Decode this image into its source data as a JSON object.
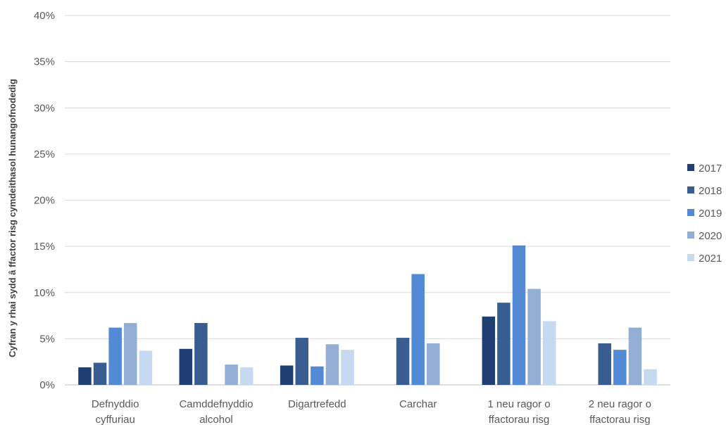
{
  "chart_data": {
    "type": "bar",
    "ylabel": "Cyfran y rhai sydd â ffactor risg cymdeithasol hunangofnodedig",
    "xlabel": "",
    "ylim": [
      0,
      40
    ],
    "ytick_step": 5,
    "ytick_suffix": "%",
    "grid": true,
    "legend_position": "right",
    "categories": [
      [
        "Defnyddio",
        "cyffuriau"
      ],
      [
        "Camddefnyddio",
        "alcohol"
      ],
      [
        "Digartrefedd"
      ],
      [
        "Carchar"
      ],
      [
        "1 neu ragor o",
        "ffactorau risg"
      ],
      [
        "2 neu ragor o",
        "ffactorau risg"
      ]
    ],
    "series": [
      {
        "name": "2017",
        "color": "#1f3f73",
        "values": [
          1.9,
          3.9,
          2.1,
          null,
          7.4,
          null
        ]
      },
      {
        "name": "2018",
        "color": "#3a5d91",
        "values": [
          2.4,
          6.7,
          5.1,
          5.1,
          8.9,
          4.5
        ]
      },
      {
        "name": "2019",
        "color": "#528ad6",
        "values": [
          6.2,
          null,
          2.0,
          12.0,
          15.1,
          3.8
        ]
      },
      {
        "name": "2020",
        "color": "#93aed4",
        "values": [
          6.7,
          2.2,
          4.4,
          4.5,
          10.4,
          6.2
        ]
      },
      {
        "name": "2021",
        "color": "#c5d9f1",
        "values": [
          3.7,
          1.9,
          3.8,
          null,
          6.9,
          1.7
        ]
      }
    ]
  }
}
